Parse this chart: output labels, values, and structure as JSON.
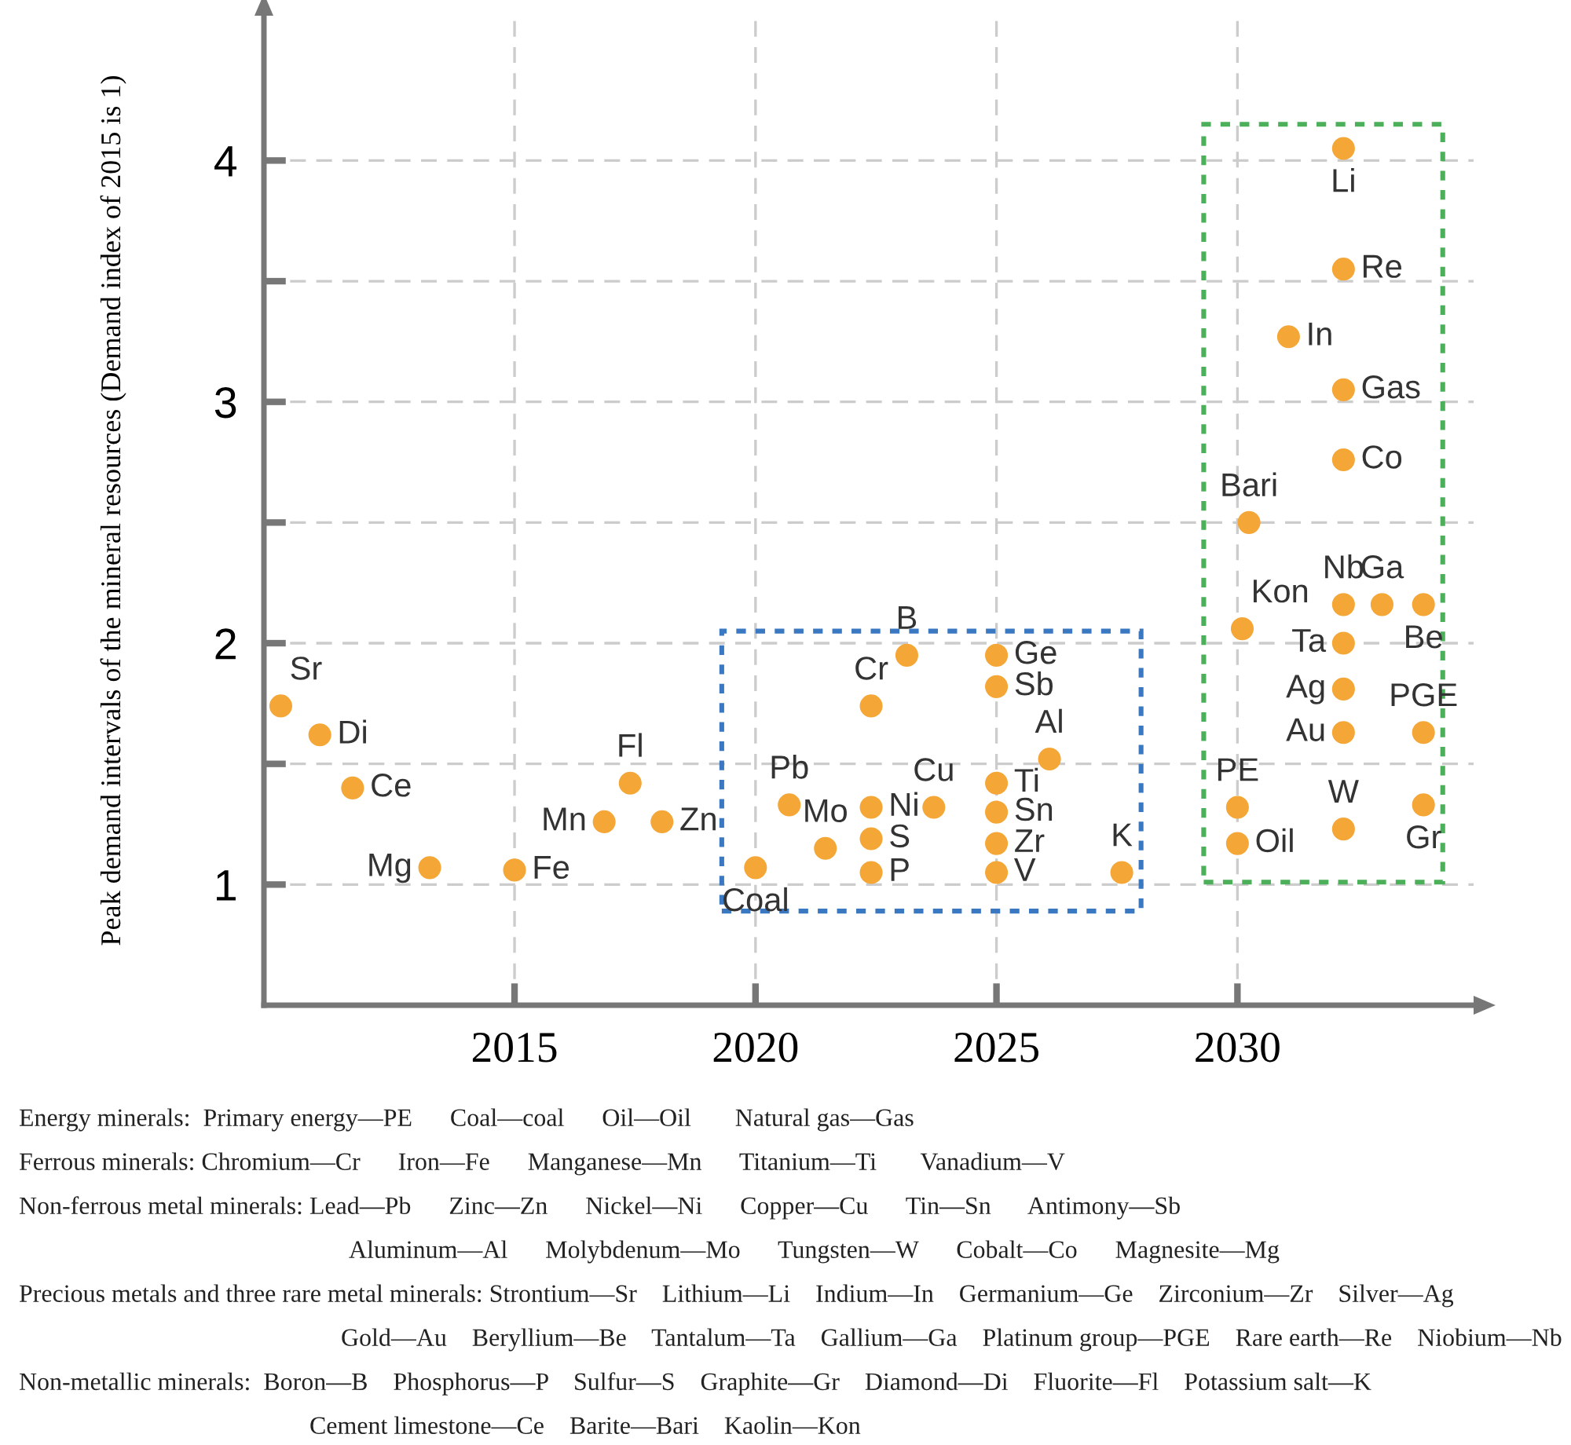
{
  "chart_data": {
    "type": "scatter",
    "ylabel": "Peak demand intervals of the mineral resources (Demand index of 2015 is 1)",
    "xlim": [
      2009.8,
      2034.9
    ],
    "xticks": [
      2015,
      2020,
      2025,
      2030
    ],
    "ylim": [
      0.5,
      4.6
    ],
    "yticks": [
      1,
      {
        "value": 1.5,
        "label": null
      },
      2,
      {
        "value": 2.5,
        "label": null
      },
      3,
      {
        "value": 3.5,
        "label": null
      },
      4
    ],
    "grid": true,
    "marker": "circle",
    "series": [
      {
        "color": "#f4a636",
        "x": [
          2010.15,
          2010.96,
          2011.64,
          2013.24,
          2015.0,
          2016.86,
          2017.4,
          2018.06
        ],
        "values": [
          1.74,
          1.62,
          1.4,
          1.07,
          1.06,
          1.26,
          1.42,
          1.26
        ]
      },
      {
        "color": "#f4a636",
        "x": [
          2020.0,
          2020.7,
          2021.45,
          2022.4,
          2022.4,
          2022.4,
          2022.4,
          2023.14,
          2023.7,
          2025.0,
          2025.0,
          2026.1,
          2025.0,
          2025.0,
          2025.0,
          2025.0,
          2027.6
        ],
        "values": [
          1.07,
          1.33,
          1.15,
          1.32,
          1.19,
          1.05,
          1.74,
          1.95,
          1.32,
          1.95,
          1.82,
          1.52,
          1.42,
          1.3,
          1.17,
          1.05,
          1.05
        ]
      },
      {
        "color": "#f4a636",
        "x": [
          2032.2,
          2032.2,
          2031.06,
          2032.2,
          2032.2,
          2030.24,
          2032.2,
          2033.0,
          2033.86,
          2030.1,
          2032.2,
          2032.2,
          2032.2,
          2033.86,
          2030.0,
          2033.86,
          2032.2,
          2030.0
        ],
        "values": [
          4.05,
          3.55,
          3.27,
          3.05,
          2.76,
          2.5,
          2.16,
          2.16,
          2.16,
          2.06,
          2.0,
          1.81,
          1.63,
          1.63,
          1.32,
          1.33,
          1.23,
          1.17
        ]
      }
    ],
    "annotations": [
      {
        "text": "Sr",
        "x": 2010.15,
        "y": 1.74
      },
      {
        "text": "Di",
        "x": 2010.96,
        "y": 1.62
      },
      {
        "text": "Ce",
        "x": 2011.64,
        "y": 1.4
      },
      {
        "text": "Mg",
        "x": 2013.24,
        "y": 1.07
      },
      {
        "text": "Fe",
        "x": 2015.0,
        "y": 1.06
      },
      {
        "text": "Mn",
        "x": 2016.86,
        "y": 1.26
      },
      {
        "text": "Fl",
        "x": 2017.4,
        "y": 1.42
      },
      {
        "text": "Zn",
        "x": 2018.06,
        "y": 1.26
      },
      {
        "text": "Coal",
        "x": 2020.0,
        "y": 1.07
      },
      {
        "text": "Pb",
        "x": 2020.7,
        "y": 1.33
      },
      {
        "text": "Mo",
        "x": 2021.45,
        "y": 1.15
      },
      {
        "text": "Ni",
        "x": 2022.4,
        "y": 1.32
      },
      {
        "text": "S",
        "x": 2022.4,
        "y": 1.19
      },
      {
        "text": "P",
        "x": 2022.4,
        "y": 1.05
      },
      {
        "text": "Cr",
        "x": 2022.4,
        "y": 1.74
      },
      {
        "text": "B",
        "x": 2023.14,
        "y": 1.95
      },
      {
        "text": "Cu",
        "x": 2023.7,
        "y": 1.32
      },
      {
        "text": "Ge",
        "x": 2025.0,
        "y": 1.95
      },
      {
        "text": "Sb",
        "x": 2025.0,
        "y": 1.82
      },
      {
        "text": "Al",
        "x": 2026.1,
        "y": 1.52
      },
      {
        "text": "Ti",
        "x": 2025.0,
        "y": 1.42
      },
      {
        "text": "Sn",
        "x": 2025.0,
        "y": 1.3
      },
      {
        "text": "Zr",
        "x": 2025.0,
        "y": 1.17
      },
      {
        "text": "V",
        "x": 2025.0,
        "y": 1.05
      },
      {
        "text": "K",
        "x": 2027.6,
        "y": 1.05
      },
      {
        "text": "Li",
        "x": 2032.2,
        "y": 4.05
      },
      {
        "text": "Re",
        "x": 2032.2,
        "y": 3.55
      },
      {
        "text": "In",
        "x": 2031.06,
        "y": 3.27
      },
      {
        "text": "Gas",
        "x": 2032.2,
        "y": 3.05
      },
      {
        "text": "Co",
        "x": 2032.2,
        "y": 2.76
      },
      {
        "text": "Bari",
        "x": 2030.24,
        "y": 2.5
      },
      {
        "text": "Nb",
        "x": 2032.2,
        "y": 2.16
      },
      {
        "text": "Ga",
        "x": 2033.0,
        "y": 2.16
      },
      {
        "text": "Be",
        "x": 2033.86,
        "y": 2.16
      },
      {
        "text": "Kon",
        "x": 2030.1,
        "y": 2.06
      },
      {
        "text": "Ta",
        "x": 2032.2,
        "y": 2.0
      },
      {
        "text": "Ag",
        "x": 2032.2,
        "y": 1.81
      },
      {
        "text": "Au",
        "x": 2032.2,
        "y": 1.63
      },
      {
        "text": "PGE",
        "x": 2033.86,
        "y": 1.63
      },
      {
        "text": "PE",
        "x": 2030.0,
        "y": 1.32
      },
      {
        "text": "Gr",
        "x": 2033.86,
        "y": 1.33
      },
      {
        "text": "W",
        "x": 2032.2,
        "y": 1.23
      },
      {
        "text": "Oil",
        "x": 2030.0,
        "y": 1.17
      },
      "Energy minerals:  Primary energy—PE      Coal—coal      Oil—Oil       Natural gas—Gas",
      "Ferrous minerals: Chromium—Cr      Iron—Fe      Manganese—Mn      Titanium—Ti       Vanadium—V",
      "Non-ferrous metal minerals: Lead—Pb      Zinc—Zn      Nickel—Ni      Copper—Cu      Tin—Sn      Antimony—Sb",
      "Aluminum—Al      Molybdenum—Mo      Tungsten—W      Cobalt—Co      Magnesite—Mg",
      "Precious metals and three rare metal minerals: Strontium—Sr    Lithium—Li    Indium—In    Germanium—Ge    Zirconium—Zr    Silver—Ag",
      "Gold—Au    Beryllium—Be    Tantalum—Ta    Gallium—Ga    Platinum group—PGE    Rare earth—Re    Niobium—Nb",
      "Non-metallic minerals:  Boron—B    Phosphorus—P    Sulfur—S    Graphite—Gr    Diamond—Di    Fluorite—Fl    Potassium salt—K",
      "Cement limestone—Ce    Barite—Bari    Kaolin—Kon"
    ]
  }
}
